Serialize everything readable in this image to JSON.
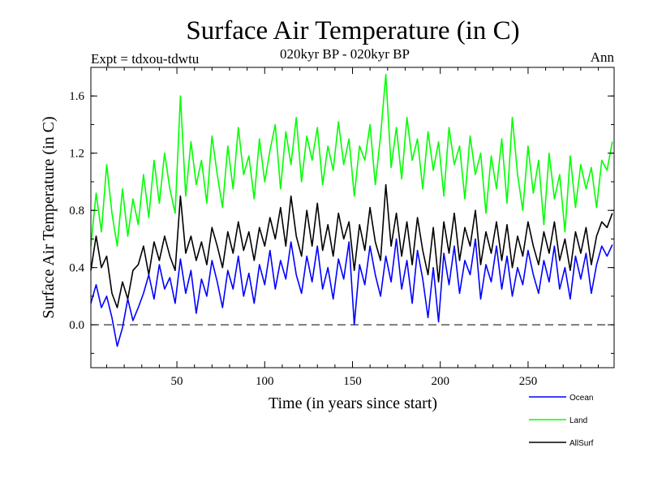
{
  "chart_data": {
    "type": "line",
    "title": "Surface Air Temperature (in C)",
    "subtitle_left": "Expt = tdxou-tdwtu",
    "subtitle_center": "020kyr BP - 020kyr BP",
    "subtitle_right": "Ann",
    "xlabel": "Time (in years since start)",
    "ylabel": "Surface Air Temperature (in C)",
    "xlim": [
      1,
      299
    ],
    "ylim": [
      -0.3,
      1.8
    ],
    "xticks": [
      50,
      100,
      150,
      200,
      250
    ],
    "yticks": [
      0.0,
      0.4,
      0.8,
      1.2,
      1.6
    ],
    "ytick_labels": [
      "0.0",
      "0.4",
      "0.8",
      "1.2",
      "1.6"
    ],
    "reference_line": {
      "y": 0.0,
      "style": "dashed"
    },
    "legend_position": "bottom-right, below plot",
    "x": [
      1,
      4,
      7,
      10,
      13,
      16,
      19,
      22,
      25,
      28,
      31,
      34,
      37,
      40,
      43,
      46,
      49,
      52,
      55,
      58,
      61,
      64,
      67,
      70,
      73,
      76,
      79,
      82,
      85,
      88,
      91,
      94,
      97,
      100,
      103,
      106,
      109,
      112,
      115,
      118,
      121,
      124,
      127,
      130,
      133,
      136,
      139,
      142,
      145,
      148,
      151,
      154,
      157,
      160,
      163,
      166,
      169,
      172,
      175,
      178,
      181,
      184,
      187,
      190,
      193,
      196,
      199,
      202,
      205,
      208,
      211,
      214,
      217,
      220,
      223,
      226,
      229,
      232,
      235,
      238,
      241,
      244,
      247,
      250,
      253,
      256,
      259,
      262,
      265,
      268,
      271,
      274,
      277,
      280,
      283,
      286,
      289,
      292,
      295,
      298
    ],
    "series": [
      {
        "name": "Ocean",
        "color": "#0000ff",
        "values": [
          0.15,
          0.28,
          0.12,
          0.2,
          0.05,
          -0.15,
          -0.02,
          0.18,
          0.03,
          0.12,
          0.22,
          0.35,
          0.18,
          0.42,
          0.25,
          0.33,
          0.15,
          0.46,
          0.22,
          0.38,
          0.08,
          0.32,
          0.2,
          0.45,
          0.3,
          0.12,
          0.38,
          0.25,
          0.48,
          0.2,
          0.36,
          0.15,
          0.42,
          0.28,
          0.52,
          0.25,
          0.45,
          0.32,
          0.58,
          0.35,
          0.22,
          0.48,
          0.3,
          0.55,
          0.25,
          0.4,
          0.18,
          0.46,
          0.32,
          0.58,
          0.0,
          0.42,
          0.28,
          0.55,
          0.35,
          0.2,
          0.48,
          0.3,
          0.6,
          0.25,
          0.45,
          0.15,
          0.52,
          0.32,
          0.05,
          0.4,
          0.02,
          0.5,
          0.28,
          0.55,
          0.22,
          0.45,
          0.35,
          0.6,
          0.18,
          0.42,
          0.3,
          0.55,
          0.25,
          0.48,
          0.2,
          0.4,
          0.28,
          0.52,
          0.35,
          0.22,
          0.45,
          0.3,
          0.55,
          0.25,
          0.4,
          0.18,
          0.48,
          0.32,
          0.5,
          0.22,
          0.42,
          0.55,
          0.48,
          0.56
        ]
      },
      {
        "name": "Land",
        "color": "#00ff00",
        "values": [
          0.55,
          0.92,
          0.65,
          1.12,
          0.78,
          0.55,
          0.95,
          0.62,
          0.88,
          0.7,
          1.05,
          0.75,
          1.15,
          0.85,
          1.2,
          0.95,
          0.78,
          1.6,
          0.9,
          1.28,
          0.98,
          1.15,
          0.85,
          1.32,
          1.05,
          0.82,
          1.25,
          0.95,
          1.38,
          1.05,
          1.18,
          0.88,
          1.3,
          1.0,
          1.22,
          1.4,
          0.95,
          1.35,
          1.12,
          1.45,
          1.0,
          1.32,
          1.15,
          1.38,
          0.98,
          1.25,
          1.08,
          1.42,
          1.12,
          1.3,
          0.9,
          1.25,
          1.15,
          1.4,
          0.98,
          1.32,
          1.75,
          1.1,
          1.38,
          1.02,
          1.45,
          1.15,
          1.3,
          0.95,
          1.35,
          1.08,
          1.28,
          0.9,
          1.38,
          1.12,
          1.25,
          0.88,
          1.32,
          1.05,
          1.2,
          0.78,
          1.18,
          0.95,
          1.3,
          0.85,
          1.45,
          1.05,
          0.8,
          1.25,
          0.92,
          1.15,
          0.7,
          1.2,
          0.88,
          1.05,
          0.65,
          1.18,
          0.82,
          1.12,
          0.95,
          1.1,
          0.82,
          1.15,
          1.08,
          1.28
        ]
      },
      {
        "name": "AllSurf",
        "color": "#000000",
        "values": [
          0.38,
          0.62,
          0.4,
          0.48,
          0.22,
          0.12,
          0.3,
          0.18,
          0.38,
          0.42,
          0.55,
          0.35,
          0.58,
          0.45,
          0.62,
          0.48,
          0.38,
          0.9,
          0.5,
          0.62,
          0.45,
          0.58,
          0.42,
          0.68,
          0.55,
          0.4,
          0.65,
          0.5,
          0.72,
          0.52,
          0.65,
          0.45,
          0.68,
          0.55,
          0.75,
          0.6,
          0.82,
          0.55,
          0.9,
          0.62,
          0.48,
          0.8,
          0.55,
          0.85,
          0.52,
          0.7,
          0.48,
          0.78,
          0.6,
          0.72,
          0.38,
          0.7,
          0.52,
          0.82,
          0.58,
          0.45,
          0.98,
          0.55,
          0.78,
          0.48,
          0.72,
          0.42,
          0.75,
          0.52,
          0.35,
          0.68,
          0.3,
          0.72,
          0.5,
          0.78,
          0.45,
          0.68,
          0.55,
          0.8,
          0.42,
          0.65,
          0.5,
          0.72,
          0.45,
          0.7,
          0.4,
          0.62,
          0.48,
          0.72,
          0.55,
          0.42,
          0.65,
          0.5,
          0.72,
          0.45,
          0.6,
          0.38,
          0.65,
          0.5,
          0.68,
          0.42,
          0.62,
          0.72,
          0.68,
          0.78
        ]
      }
    ]
  }
}
